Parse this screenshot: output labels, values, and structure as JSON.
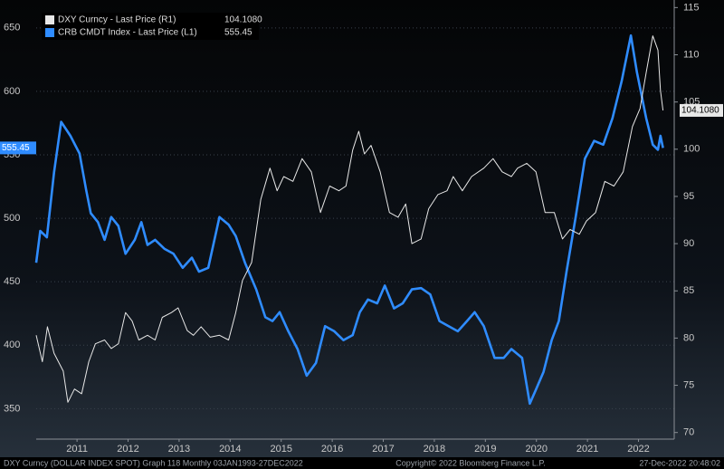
{
  "chart_data": {
    "type": "line",
    "xlim": [
      2010.7,
      2023.2
    ],
    "xticks": [
      {
        "value": 2011.5,
        "label": "2011"
      },
      {
        "value": 2012.5,
        "label": "2012"
      },
      {
        "value": 2013.5,
        "label": "2013"
      },
      {
        "value": 2014.5,
        "label": "2014"
      },
      {
        "value": 2015.5,
        "label": "2015"
      },
      {
        "value": 2016.5,
        "label": "2016"
      },
      {
        "value": 2017.5,
        "label": "2017"
      },
      {
        "value": 2018.5,
        "label": "2018"
      },
      {
        "value": 2019.5,
        "label": "2019"
      },
      {
        "value": 2020.5,
        "label": "2020"
      },
      {
        "value": 2021.5,
        "label": "2021"
      },
      {
        "value": 2022.5,
        "label": "2022"
      }
    ],
    "ylim": [
      326,
      672
    ],
    "yticks": [
      350,
      400,
      450,
      500,
      550,
      600,
      650
    ],
    "y2lim": [
      69.3,
      115.8
    ],
    "y2ticks": [
      70,
      75,
      80,
      85,
      90,
      95,
      100,
      105,
      110,
      115
    ],
    "grid": true,
    "series": [
      {
        "name": "DXY Curncy - Last Price (R1)",
        "color": "#e8e8e8",
        "axis": "y2",
        "last_label": "104.1080",
        "x": [
          2010.7,
          2010.82,
          2010.92,
          2011.05,
          2011.23,
          2011.32,
          2011.45,
          2011.59,
          2011.73,
          2011.86,
          2012.04,
          2012.17,
          2012.31,
          2012.45,
          2012.58,
          2012.71,
          2012.88,
          2013.03,
          2013.17,
          2013.35,
          2013.48,
          2013.66,
          2013.78,
          2013.93,
          2014.11,
          2014.29,
          2014.47,
          2014.61,
          2014.74,
          2014.92,
          2015.1,
          2015.28,
          2015.42,
          2015.55,
          2015.73,
          2015.91,
          2016.09,
          2016.27,
          2016.45,
          2016.63,
          2016.77,
          2016.9,
          2017.02,
          2017.13,
          2017.26,
          2017.44,
          2017.62,
          2017.79,
          2017.94,
          2018.06,
          2018.24,
          2018.39,
          2018.57,
          2018.75,
          2018.87,
          2019.05,
          2019.23,
          2019.47,
          2019.65,
          2019.83,
          2020.01,
          2020.13,
          2020.31,
          2020.49,
          2020.67,
          2020.85,
          2021.01,
          2021.16,
          2021.34,
          2021.48,
          2021.66,
          2021.84,
          2022.02,
          2022.2,
          2022.38,
          2022.53,
          2022.65,
          2022.78,
          2022.88,
          2022.93,
          2022.98
        ],
        "values": [
          80.3,
          77.5,
          81.2,
          78.4,
          76.5,
          73.2,
          74.6,
          74.1,
          77.5,
          79.4,
          79.8,
          78.9,
          79.4,
          82.7,
          81.8,
          79.8,
          80.3,
          79.8,
          82.2,
          82.7,
          83.2,
          80.8,
          80.3,
          81.2,
          80.1,
          80.3,
          79.8,
          82.7,
          86.1,
          88.0,
          94.7,
          98.0,
          95.6,
          97.1,
          96.6,
          99.0,
          97.6,
          93.3,
          96.1,
          95.6,
          96.1,
          99.9,
          101.9,
          99.5,
          100.4,
          97.6,
          93.3,
          92.8,
          94.2,
          90.0,
          90.5,
          93.7,
          95.2,
          95.6,
          97.1,
          95.6,
          97.1,
          98.0,
          99.0,
          97.6,
          97.1,
          98.0,
          98.5,
          97.6,
          93.3,
          93.3,
          90.5,
          91.5,
          91.0,
          92.4,
          93.3,
          96.6,
          96.1,
          97.6,
          102.4,
          104.3,
          108.1,
          112.0,
          110.5,
          106.2,
          104.108
        ]
      },
      {
        "name": "CRB CMDT Index - Last Price (L1)",
        "color": "#2f8cff",
        "axis": "y",
        "last_label": "555.45",
        "x": [
          2010.7,
          2010.78,
          2010.91,
          2011.05,
          2011.19,
          2011.37,
          2011.55,
          2011.68,
          2011.77,
          2011.91,
          2012.04,
          2012.17,
          2012.31,
          2012.45,
          2012.63,
          2012.76,
          2012.88,
          2013.03,
          2013.21,
          2013.39,
          2013.57,
          2013.75,
          2013.89,
          2014.07,
          2014.29,
          2014.47,
          2014.61,
          2014.79,
          2015.01,
          2015.19,
          2015.33,
          2015.47,
          2015.64,
          2015.82,
          2016.0,
          2016.18,
          2016.36,
          2016.54,
          2016.72,
          2016.9,
          2017.04,
          2017.2,
          2017.38,
          2017.53,
          2017.71,
          2017.88,
          2018.06,
          2018.24,
          2018.42,
          2018.6,
          2018.78,
          2018.96,
          2019.14,
          2019.29,
          2019.47,
          2019.68,
          2019.86,
          2020.01,
          2020.22,
          2020.37,
          2020.49,
          2020.64,
          2020.8,
          2020.94,
          2021.09,
          2021.27,
          2021.45,
          2021.63,
          2021.81,
          2021.99,
          2022.17,
          2022.35,
          2022.47,
          2022.65,
          2022.78,
          2022.88,
          2022.93,
          2022.98
        ],
        "values": [
          465,
          490,
          485,
          536,
          576,
          565,
          551,
          522,
          504,
          497,
          483,
          501,
          494,
          472,
          483,
          497,
          479,
          483,
          476,
          472,
          461,
          469,
          458,
          461,
          501,
          495,
          486,
          465,
          444,
          422,
          419,
          426,
          411,
          397,
          376,
          386,
          415,
          411,
          404,
          408,
          426,
          436,
          433,
          447,
          429,
          433,
          444,
          445,
          440,
          419,
          415,
          411,
          419,
          426,
          415,
          390,
          390,
          397,
          390,
          354,
          365,
          379,
          404,
          419,
          458,
          501,
          547,
          561,
          558,
          579,
          608,
          644,
          615,
          579,
          558,
          554,
          565,
          555.45
        ]
      }
    ],
    "footer": [
      "DXY Curncy (DOLLAR INDEX SPOT) Graph 118  Monthly 03JAN1993-27DEC2022",
      "Copyright© 2022 Bloomberg Finance L.P.",
      "27-Dec-2022 20:48:02"
    ]
  }
}
